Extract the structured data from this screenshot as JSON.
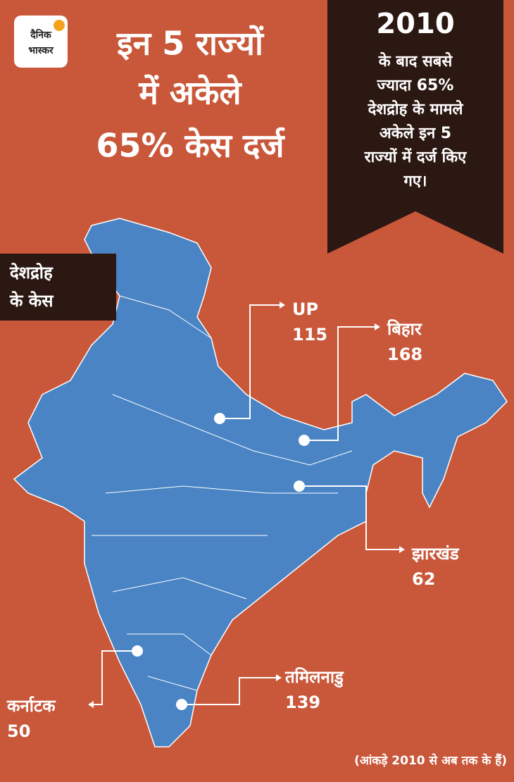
{
  "logo": {
    "line1": "दैनिक",
    "line2": "भास्कर"
  },
  "title": {
    "lines": [
      "इन 5 राज्यों",
      "में अकेले",
      "65% केस दर्ज"
    ]
  },
  "banner": {
    "year": "2010",
    "lines": [
      "के बाद सबसे",
      "ज्यादा 65%",
      "देशद्रोह के मामले",
      "अकेले इन 5",
      "राज्यों में दर्ज किए",
      "गए।"
    ]
  },
  "legend_label": {
    "lines": [
      "देशद्रोह",
      "के केस"
    ]
  },
  "states": [
    {
      "name": "UP",
      "cases": 115
    },
    {
      "name": "बिहार",
      "cases": 168
    },
    {
      "name": "झारखंड",
      "cases": 62
    },
    {
      "name": "तमिलनाडु",
      "cases": 139
    },
    {
      "name": "कर्नाटक",
      "cases": 50
    }
  ],
  "footnote": "(आंकड़े 2010 से अब तक के हैं)"
}
